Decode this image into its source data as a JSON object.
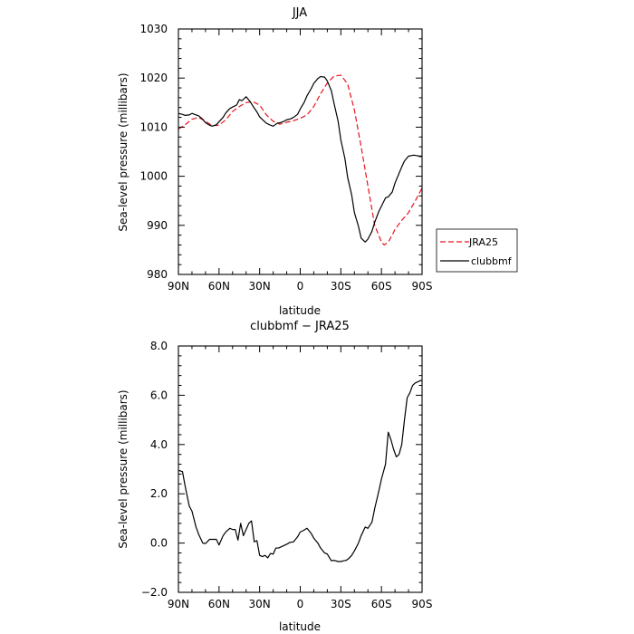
{
  "chart_data": [
    {
      "type": "line",
      "title": "JJA",
      "xlabel": "latitude",
      "ylabel": "Sea-level pressure (millibars)",
      "xlim": [
        90,
        -90
      ],
      "ylim": [
        980,
        1030
      ],
      "xticks": [
        90,
        60,
        30,
        0,
        -30,
        -60,
        -90
      ],
      "xticklabels": [
        "90N",
        "60N",
        "30N",
        "0",
        "30S",
        "60S",
        "90S"
      ],
      "yticks": [
        980,
        990,
        1000,
        1010,
        1020,
        1030
      ],
      "yticklabels": [
        "980",
        "990",
        "1000",
        "1010",
        "1020",
        "1030"
      ],
      "grid": false,
      "legend": "right",
      "series": [
        {
          "name": "JRA25",
          "color": "#e8141c",
          "dash": "dashed",
          "x": [
            90,
            85,
            80,
            75,
            70,
            65,
            60,
            55,
            50,
            45,
            40,
            35,
            30,
            25,
            20,
            15,
            10,
            5,
            0,
            -5,
            -10,
            -15,
            -20,
            -25,
            -30,
            -35,
            -40,
            -45,
            -50,
            -55,
            -60,
            -62,
            -65,
            -68,
            -70,
            -75,
            -80,
            -85,
            -90
          ],
          "y": [
            1009.6,
            1010.5,
            1011.6,
            1012.0,
            1011.2,
            1010.3,
            1010.4,
            1011.5,
            1013.2,
            1014.2,
            1015.0,
            1015.2,
            1014.5,
            1012.5,
            1011.2,
            1010.6,
            1011.0,
            1011.3,
            1011.8,
            1012.5,
            1014.2,
            1016.8,
            1019.0,
            1020.4,
            1020.6,
            1018.8,
            1013.5,
            1006.0,
            998.0,
            990.0,
            986.6,
            986.0,
            986.6,
            988.0,
            989.2,
            991.0,
            992.6,
            995.0,
            997.6
          ]
        },
        {
          "name": "clubbmf",
          "color": "#000000",
          "dash": "solid",
          "x": [
            90,
            87,
            85,
            82,
            80,
            78,
            75,
            72,
            70,
            67,
            65,
            62,
            60,
            57,
            55,
            52,
            50,
            47,
            45,
            43,
            40,
            37,
            35,
            32,
            30,
            27,
            25,
            22,
            20,
            17,
            15,
            12,
            10,
            7,
            5,
            2,
            0,
            -3,
            -5,
            -8,
            -10,
            -13,
            -15,
            -18,
            -20,
            -23,
            -25,
            -28,
            -30,
            -33,
            -35,
            -38,
            -40,
            -43,
            -45,
            -48,
            -50,
            -53,
            -55,
            -58,
            -60,
            -63,
            -65,
            -68,
            -70,
            -73,
            -75,
            -77,
            -80,
            -82,
            -84,
            -86,
            -88,
            -90
          ],
          "y": [
            1012.8,
            1012.6,
            1012.4,
            1012.5,
            1012.8,
            1012.6,
            1012.3,
            1011.6,
            1010.9,
            1010.4,
            1010.2,
            1010.5,
            1011.1,
            1012.0,
            1012.9,
            1013.8,
            1014.1,
            1014.5,
            1015.6,
            1015.4,
            1016.2,
            1015.2,
            1014.3,
            1013.1,
            1012.1,
            1011.3,
            1010.8,
            1010.4,
            1010.2,
            1010.8,
            1010.9,
            1011.2,
            1011.5,
            1011.7,
            1012.0,
            1012.6,
            1013.7,
            1015.1,
            1016.4,
            1017.8,
            1018.9,
            1019.9,
            1020.3,
            1020.2,
            1019.4,
            1017.4,
            1014.8,
            1011.2,
            1007.4,
            1003.6,
            999.8,
            996.2,
            992.6,
            989.8,
            987.4,
            986.6,
            987.2,
            988.8,
            990.6,
            992.8,
            993.9,
            995.6,
            995.8,
            996.8,
            998.6,
            1000.6,
            1001.9,
            1003.1,
            1004.1,
            1004.2,
            1004.3,
            1004.2,
            1004.1,
            1004.1
          ]
        }
      ]
    },
    {
      "type": "line",
      "title": "clubbmf − JRA25",
      "xlabel": "latitude",
      "ylabel": "Sea-level pressure (millibars)",
      "xlim": [
        90,
        -90
      ],
      "ylim": [
        -2,
        8
      ],
      "xticks": [
        90,
        60,
        30,
        0,
        -30,
        -60,
        -90
      ],
      "xticklabels": [
        "90N",
        "60N",
        "30N",
        "0",
        "30S",
        "60S",
        "90S"
      ],
      "yticks": [
        -2,
        0,
        2,
        4,
        6,
        8
      ],
      "yticklabels": [
        "−2.0",
        "0.0",
        "2.0",
        "4.0",
        "6.0",
        "8.0"
      ],
      "grid": false,
      "series": [
        {
          "name": "",
          "color": "#000000",
          "dash": "solid",
          "x": [
            90,
            87,
            85,
            82,
            80,
            77,
            75,
            72,
            70,
            67,
            65,
            62,
            60,
            57,
            55,
            52,
            50,
            48,
            46,
            44,
            42,
            40,
            38,
            36,
            34,
            32,
            30,
            28,
            26,
            24,
            22,
            20,
            18,
            16,
            14,
            12,
            10,
            8,
            5,
            2,
            0,
            -2,
            -5,
            -8,
            -10,
            -13,
            -15,
            -18,
            -20,
            -23,
            -25,
            -28,
            -30,
            -32,
            -34,
            -36,
            -38,
            -40,
            -43,
            -45,
            -48,
            -50,
            -53,
            -55,
            -58,
            -60,
            -63,
            -65,
            -67,
            -69,
            -71,
            -73,
            -75,
            -77,
            -79,
            -81,
            -83,
            -85,
            -87,
            -89,
            -90
          ],
          "y": [
            2.95,
            2.9,
            2.3,
            1.5,
            1.3,
            0.65,
            0.35,
            0.0,
            -0.02,
            0.15,
            0.15,
            0.15,
            -0.08,
            0.3,
            0.45,
            0.6,
            0.55,
            0.55,
            0.12,
            0.8,
            0.3,
            0.55,
            0.8,
            0.9,
            0.05,
            0.1,
            -0.5,
            -0.55,
            -0.5,
            -0.6,
            -0.42,
            -0.45,
            -0.2,
            -0.2,
            -0.15,
            -0.1,
            -0.05,
            0.02,
            0.05,
            0.25,
            0.45,
            0.5,
            0.6,
            0.4,
            0.2,
            0.0,
            -0.2,
            -0.4,
            -0.45,
            -0.72,
            -0.7,
            -0.75,
            -0.75,
            -0.72,
            -0.7,
            -0.62,
            -0.5,
            -0.32,
            0.0,
            0.3,
            0.65,
            0.6,
            0.85,
            1.4,
            2.1,
            2.6,
            3.2,
            4.5,
            4.2,
            3.8,
            3.5,
            3.6,
            4.0,
            5.0,
            5.9,
            6.1,
            6.4,
            6.5,
            6.55,
            6.6,
            6.6
          ]
        }
      ]
    }
  ]
}
